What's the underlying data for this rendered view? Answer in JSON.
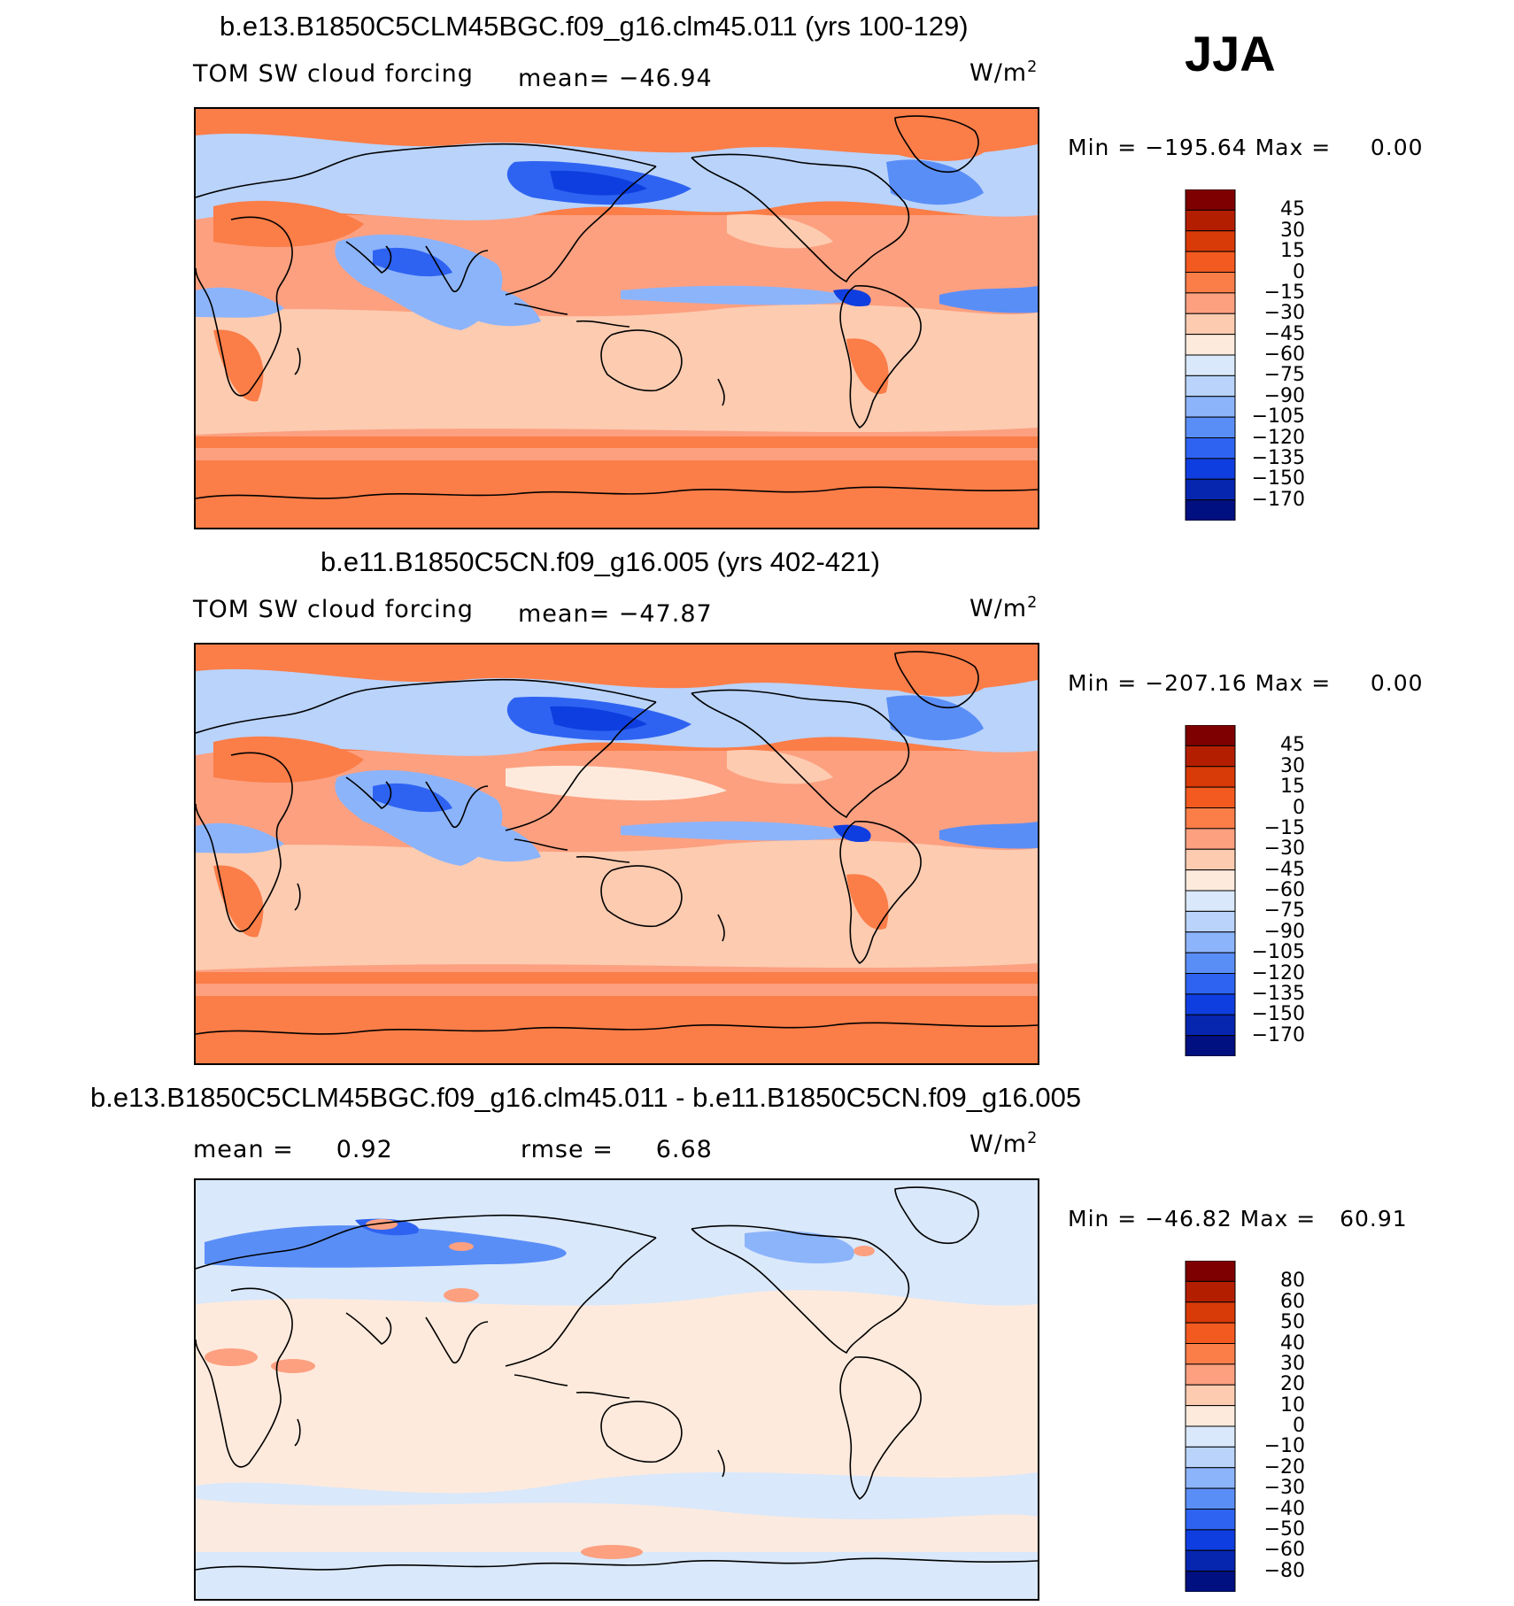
{
  "season": "JJA",
  "units": "W/m",
  "units_sup": "2",
  "panels": [
    {
      "title": "b.e13.B1850C5CLM45BGC.f09_g16.clm45.011 (yrs 100-129)",
      "left_label": "TOM SW cloud forcing",
      "stat1": "mean= −46.94",
      "stat2": "",
      "minmax": "Min = −195.64 Max =     0.00",
      "colorbar_labels": [
        "45",
        "30",
        "15",
        "0",
        "−15",
        "−30",
        "−45",
        "−60",
        "−75",
        "−90",
        "−105",
        "−120",
        "−135",
        "−150",
        "−170"
      ],
      "colorbar_colors": [
        "#7f0000",
        "#b41e00",
        "#d83a08",
        "#f25a20",
        "#fb7d48",
        "#fca080",
        "#fdcbb0",
        "#feeadc",
        "#d9e8fb",
        "#b9d3fb",
        "#8cb4fb",
        "#5a8ef7",
        "#2e63f2",
        "#0f3ee0",
        "#0626b0",
        "#001080"
      ],
      "bands": "model1"
    },
    {
      "title": "b.e11.B1850C5CN.f09_g16.005 (yrs 402-421)",
      "left_label": "TOM SW cloud forcing",
      "stat1": "mean= −47.87",
      "stat2": "",
      "minmax": "Min = −207.16 Max =     0.00",
      "colorbar_labels": [
        "45",
        "30",
        "15",
        "0",
        "−15",
        "−30",
        "−45",
        "−60",
        "−75",
        "−90",
        "−105",
        "−120",
        "−135",
        "−150",
        "−170"
      ],
      "colorbar_colors": [
        "#7f0000",
        "#b41e00",
        "#d83a08",
        "#f25a20",
        "#fb7d48",
        "#fca080",
        "#fdcbb0",
        "#feeadc",
        "#d9e8fb",
        "#b9d3fb",
        "#8cb4fb",
        "#5a8ef7",
        "#2e63f2",
        "#0f3ee0",
        "#0626b0",
        "#001080"
      ],
      "bands": "model2"
    },
    {
      "title": "b.e13.B1850C5CLM45BGC.f09_g16.clm45.011 - b.e11.B1850C5CN.f09_g16.005",
      "left_label": "mean =     0.92",
      "stat1": "rmse =     6.68",
      "stat2": "",
      "minmax": "Min = −46.82 Max =   60.91",
      "colorbar_labels": [
        "80",
        "60",
        "50",
        "40",
        "30",
        "20",
        "10",
        "0",
        "−10",
        "−20",
        "−30",
        "−40",
        "−50",
        "−60",
        "−80"
      ],
      "colorbar_colors": [
        "#7f0000",
        "#b41e00",
        "#d83a08",
        "#f25a20",
        "#fb7d48",
        "#fca080",
        "#fdcbb0",
        "#feeadc",
        "#d9e8fb",
        "#b9d3fb",
        "#8cb4fb",
        "#5a8ef7",
        "#2e63f2",
        "#0f3ee0",
        "#0626b0",
        "#001080"
      ],
      "bands": "diff"
    }
  ],
  "chart_data": [
    {
      "type": "heatmap",
      "title": "b.e13.B1850C5CLM45BGC.f09_g16.clm45.011 (yrs 100-129)",
      "subtitle": "TOM SW cloud forcing",
      "mean": -46.94,
      "min": -195.64,
      "max": 0.0,
      "units": "W/m2",
      "levels": [
        45,
        30,
        15,
        0,
        -15,
        -30,
        -45,
        -60,
        -75,
        -90,
        -105,
        -120,
        -135,
        -150,
        -170
      ]
    },
    {
      "type": "heatmap",
      "title": "b.e11.B1850C5CN.f09_g16.005 (yrs 402-421)",
      "subtitle": "TOM SW cloud forcing",
      "mean": -47.87,
      "min": -207.16,
      "max": 0.0,
      "units": "W/m2",
      "levels": [
        45,
        30,
        15,
        0,
        -15,
        -30,
        -45,
        -60,
        -75,
        -90,
        -105,
        -120,
        -135,
        -150,
        -170
      ]
    },
    {
      "type": "heatmap",
      "title": "b.e13.B1850C5CLM45BGC.f09_g16.clm45.011 - b.e11.B1850C5CN.f09_g16.005",
      "mean": 0.92,
      "rmse": 6.68,
      "min": -46.82,
      "max": 60.91,
      "units": "W/m2",
      "levels": [
        80,
        60,
        50,
        40,
        30,
        20,
        10,
        0,
        -10,
        -20,
        -30,
        -40,
        -50,
        -60,
        -80
      ]
    }
  ]
}
